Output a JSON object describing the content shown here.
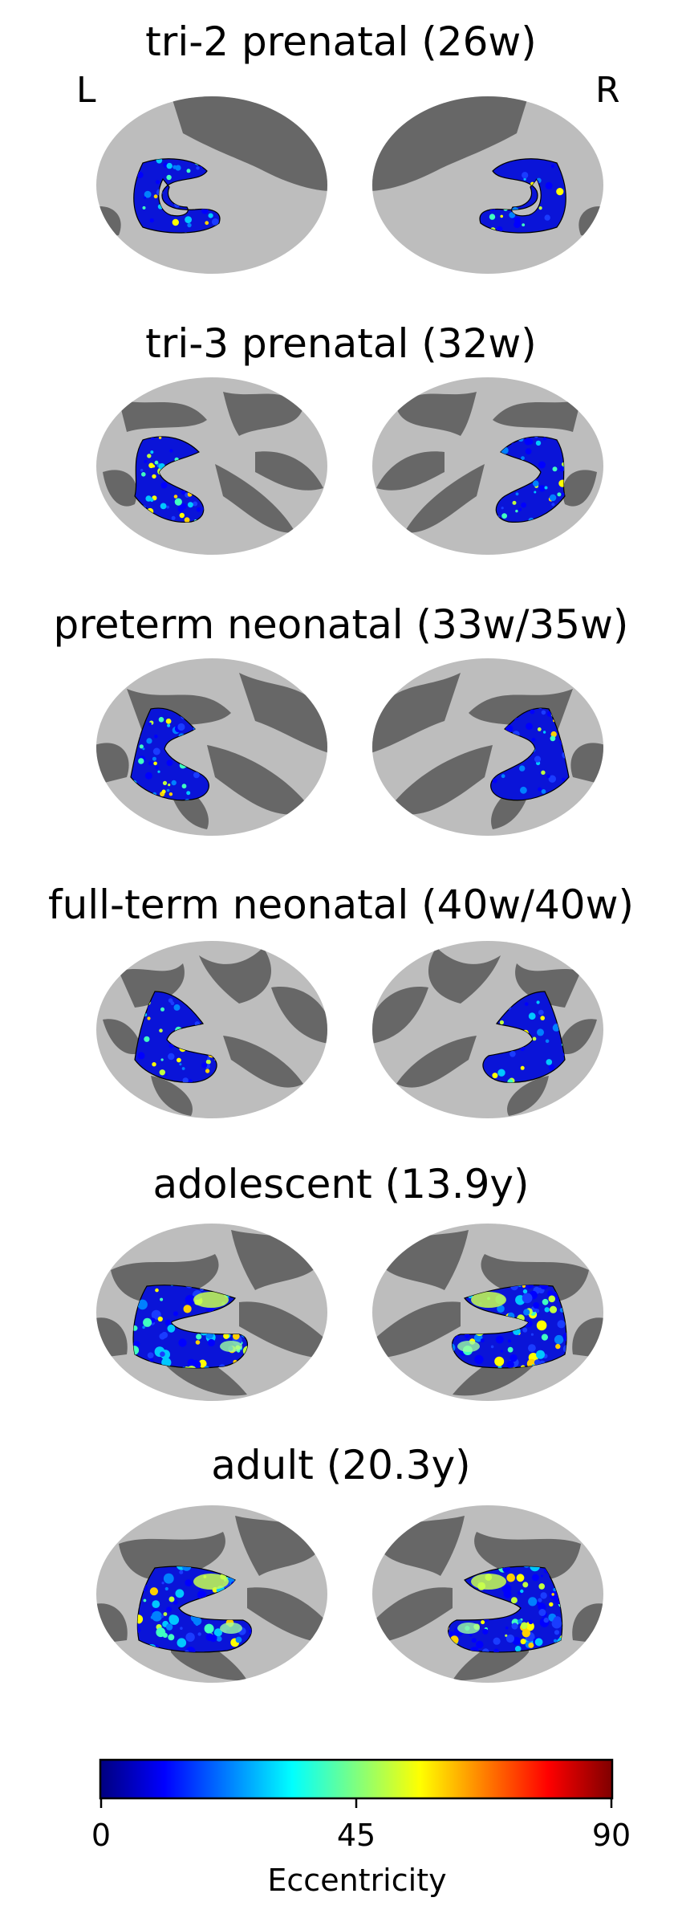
{
  "hemisphere_labels": {
    "left": "L",
    "right": "R"
  },
  "colors": {
    "sulcus": "#676767",
    "gyrus": "#bdbdbd",
    "colormap": [
      "#00007f",
      "#0000ff",
      "#007fff",
      "#00ffff",
      "#7fff7f",
      "#ffff00",
      "#ff7f00",
      "#ff0000",
      "#7f0000"
    ]
  },
  "panels": [
    {
      "title": "tri-2 prenatal (26w)"
    },
    {
      "title": "tri-3 prenatal (32w)"
    },
    {
      "title": "preterm neonatal (33w/35w)"
    },
    {
      "title": "full-term neonatal (40w/40w)"
    },
    {
      "title": "adolescent (13.9y)"
    },
    {
      "title": "adult (20.3y)"
    }
  ],
  "colorbar": {
    "label": "Eccentricity",
    "min": 0,
    "max": 90,
    "ticks": [
      "0",
      "45",
      "90"
    ]
  }
}
